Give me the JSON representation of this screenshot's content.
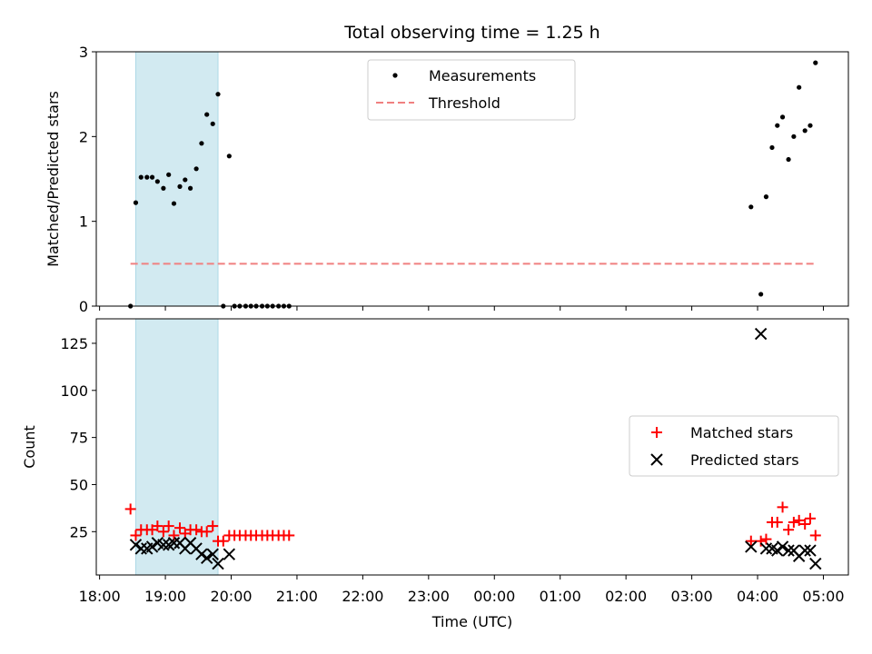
{
  "chart_data": {
    "title": "Total observing time = 1.25 h",
    "xlabel": "Time (UTC)",
    "x_ticks": [
      "18:00",
      "19:00",
      "20:00",
      "21:00",
      "22:00",
      "23:00",
      "00:00",
      "01:00",
      "02:00",
      "03:00",
      "04:00",
      "05:00"
    ],
    "xlim_hours": [
      17.95,
      29.38
    ],
    "shaded_interval": [
      18.55,
      19.8
    ],
    "shade_color": "#add8e6",
    "panels": [
      {
        "id": "ratio",
        "type": "scatter",
        "ylabel": "Matched/Predicted stars",
        "ylim": [
          0,
          3
        ],
        "y_ticks": [
          0,
          1,
          2,
          3
        ],
        "legend_position": "upper-center",
        "series": [
          {
            "name": "Measurements",
            "marker": "dot",
            "color": "#000000",
            "points": [
              [
                18.47,
                0
              ],
              [
                18.55,
                1.22
              ],
              [
                18.63,
                1.52
              ],
              [
                18.72,
                1.52
              ],
              [
                18.8,
                1.52
              ],
              [
                18.88,
                1.47
              ],
              [
                18.97,
                1.39
              ],
              [
                19.05,
                1.55
              ],
              [
                19.13,
                1.21
              ],
              [
                19.22,
                1.41
              ],
              [
                19.3,
                1.49
              ],
              [
                19.38,
                1.39
              ],
              [
                19.47,
                1.62
              ],
              [
                19.55,
                1.92
              ],
              [
                19.63,
                2.26
              ],
              [
                19.72,
                2.15
              ],
              [
                19.8,
                2.5
              ],
              [
                19.88,
                0
              ],
              [
                19.97,
                1.77
              ],
              [
                20.05,
                0
              ],
              [
                20.13,
                0
              ],
              [
                20.22,
                0
              ],
              [
                20.3,
                0
              ],
              [
                20.38,
                0
              ],
              [
                20.47,
                0
              ],
              [
                20.55,
                0
              ],
              [
                20.63,
                0
              ],
              [
                20.72,
                0
              ],
              [
                20.8,
                0
              ],
              [
                20.88,
                0
              ],
              [
                27.9,
                1.17
              ],
              [
                28.05,
                0.14
              ],
              [
                28.13,
                1.29
              ],
              [
                28.22,
                1.87
              ],
              [
                28.3,
                2.13
              ],
              [
                28.38,
                2.23
              ],
              [
                28.47,
                1.73
              ],
              [
                28.55,
                2.0
              ],
              [
                28.63,
                2.58
              ],
              [
                28.72,
                2.07
              ],
              [
                28.8,
                2.13
              ],
              [
                28.88,
                2.87
              ]
            ]
          },
          {
            "name": "Threshold",
            "type": "line",
            "style": "dashed",
            "color": "#f08080",
            "y": 0.5,
            "x_range": [
              18.47,
              28.88
            ]
          }
        ]
      },
      {
        "id": "counts",
        "type": "scatter",
        "ylabel": "Count",
        "ylim": [
          2,
          138
        ],
        "y_ticks": [
          25,
          50,
          75,
          100,
          125
        ],
        "legend_position": "right",
        "series": [
          {
            "name": "Matched stars",
            "marker": "plus",
            "color": "#ff0000",
            "points": [
              [
                18.47,
                37
              ],
              [
                18.55,
                23
              ],
              [
                18.63,
                26
              ],
              [
                18.72,
                26
              ],
              [
                18.8,
                26
              ],
              [
                18.88,
                28
              ],
              [
                18.97,
                25
              ],
              [
                19.05,
                28
              ],
              [
                19.13,
                23
              ],
              [
                19.22,
                27
              ],
              [
                19.3,
                24
              ],
              [
                19.38,
                26
              ],
              [
                19.47,
                26
              ],
              [
                19.55,
                25
              ],
              [
                19.63,
                25
              ],
              [
                19.72,
                28
              ],
              [
                19.8,
                20
              ],
              [
                19.88,
                20
              ],
              [
                19.97,
                23
              ],
              [
                20.05,
                23
              ],
              [
                20.13,
                23
              ],
              [
                20.22,
                23
              ],
              [
                20.3,
                23
              ],
              [
                20.38,
                23
              ],
              [
                20.47,
                23
              ],
              [
                20.55,
                23
              ],
              [
                20.63,
                23
              ],
              [
                20.72,
                23
              ],
              [
                20.8,
                23
              ],
              [
                20.88,
                23
              ],
              [
                27.9,
                20
              ],
              [
                28.05,
                20
              ],
              [
                28.13,
                21
              ],
              [
                28.22,
                30
              ],
              [
                28.3,
                30
              ],
              [
                28.38,
                38
              ],
              [
                28.47,
                26
              ],
              [
                28.55,
                30
              ],
              [
                28.63,
                31
              ],
              [
                28.72,
                29
              ],
              [
                28.8,
                32
              ],
              [
                28.88,
                23
              ]
            ]
          },
          {
            "name": "Predicted stars",
            "marker": "x",
            "color": "#000000",
            "points": [
              [
                18.55,
                18
              ],
              [
                18.63,
                16
              ],
              [
                18.72,
                16
              ],
              [
                18.8,
                17
              ],
              [
                18.88,
                19
              ],
              [
                18.97,
                18
              ],
              [
                19.05,
                18
              ],
              [
                19.13,
                19
              ],
              [
                19.22,
                19
              ],
              [
                19.3,
                16
              ],
              [
                19.38,
                19
              ],
              [
                19.47,
                16
              ],
              [
                19.55,
                13
              ],
              [
                19.63,
                11
              ],
              [
                19.72,
                13
              ],
              [
                19.8,
                8
              ],
              [
                19.97,
                13
              ],
              [
                27.9,
                17
              ],
              [
                28.05,
                130
              ],
              [
                28.13,
                16
              ],
              [
                28.22,
                16
              ],
              [
                28.3,
                15
              ],
              [
                28.38,
                17
              ],
              [
                28.47,
                15
              ],
              [
                28.55,
                15
              ],
              [
                28.63,
                12
              ],
              [
                28.72,
                15
              ],
              [
                28.8,
                15
              ],
              [
                28.88,
                8
              ]
            ]
          }
        ]
      }
    ]
  }
}
